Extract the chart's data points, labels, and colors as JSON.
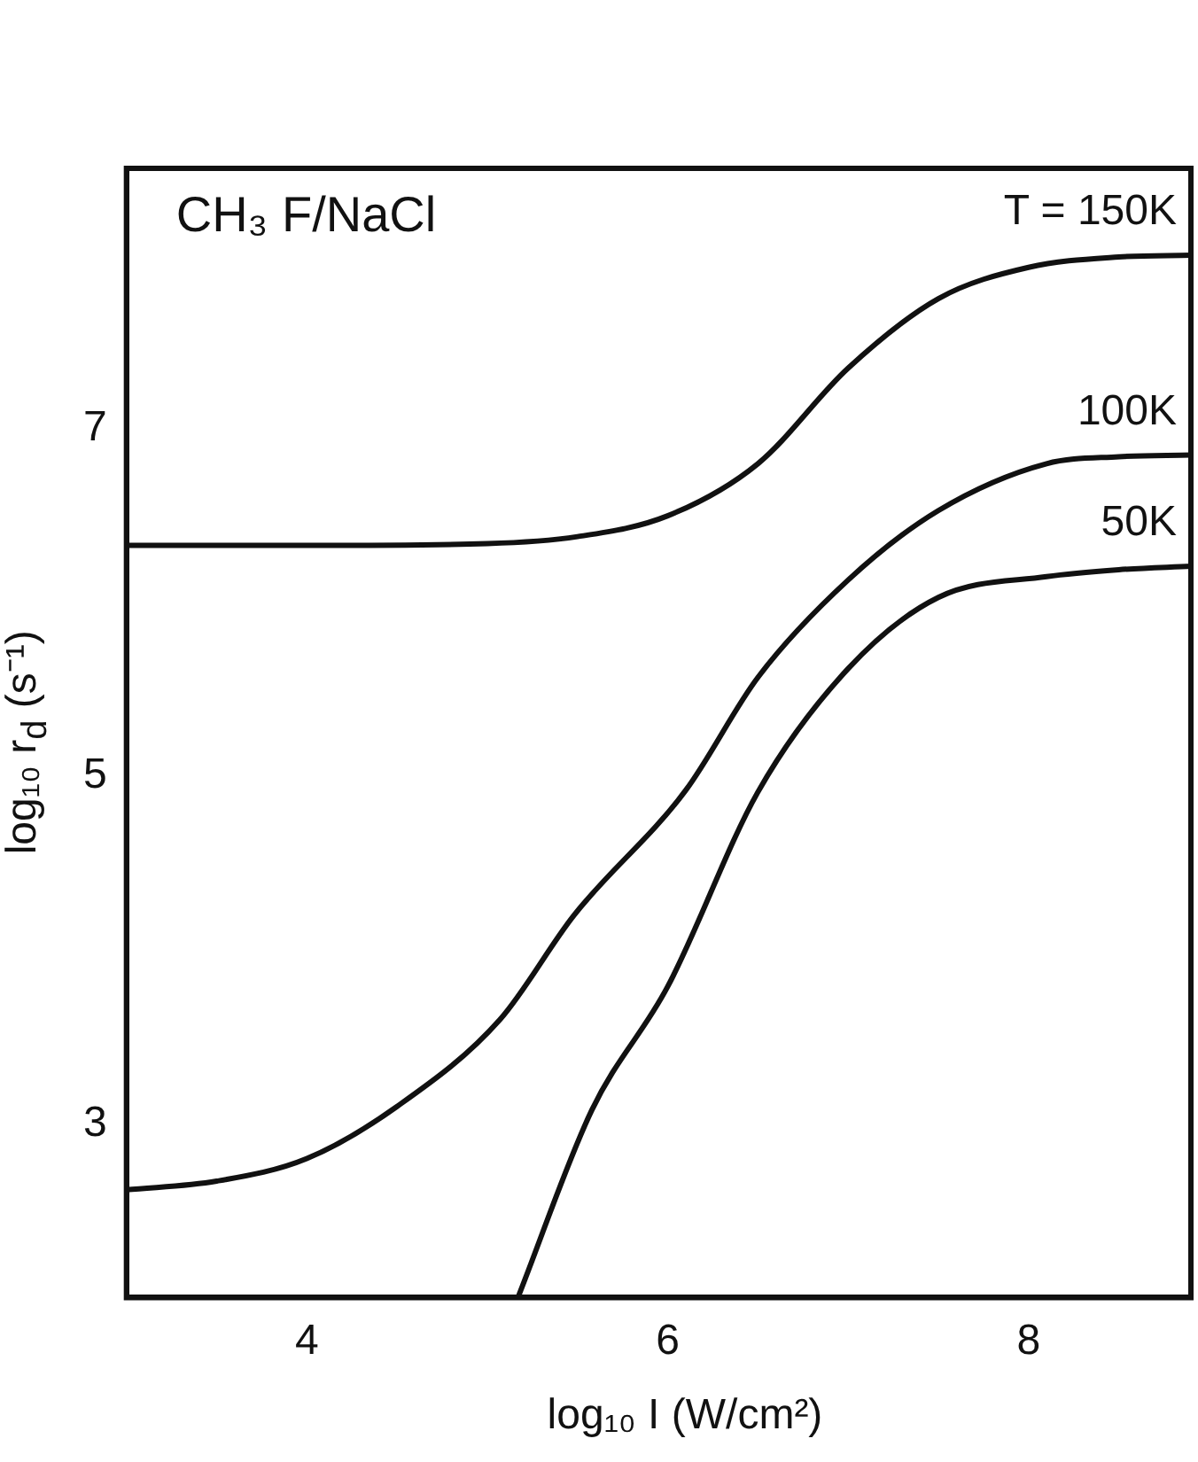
{
  "chart_data": {
    "type": "line",
    "title": "CH₃ F/NaCl",
    "xlabel": "log₁₀ I (W/cm²)",
    "ylabel": "log₁₀ r$_{d}$ (s⁻¹)",
    "xlim": [
      3,
      8.9
    ],
    "ylim": [
      2,
      8.5
    ],
    "xticks": [
      4,
      6,
      8
    ],
    "yticks": [
      3,
      5,
      7
    ],
    "marker": "none",
    "line_style": "solid",
    "legend": false,
    "series": [
      {
        "color": "#111111",
        "x": [
          3,
          4,
          5,
          5.5,
          6,
          6.5,
          7,
          7.5,
          8,
          8.5,
          8.9
        ],
        "values": [
          6.33,
          6.33,
          6.34,
          6.38,
          6.5,
          6.8,
          7.35,
          7.75,
          7.93,
          7.99,
          8.0
        ]
      },
      {
        "color": "#111111",
        "x": [
          3,
          3.5,
          4,
          4.5,
          5.07,
          5.48,
          6.1,
          6.5,
          7,
          7.5,
          8.1,
          8.5,
          8.9
        ],
        "values": [
          2.62,
          2.67,
          2.8,
          3.1,
          3.6,
          4.2,
          4.92,
          5.57,
          6.13,
          6.53,
          6.8,
          6.84,
          6.85
        ]
      },
      {
        "color": "#111111",
        "x": [
          5.17,
          5.58,
          6,
          6.5,
          7,
          7.5,
          8.1,
          8.5,
          8.9
        ],
        "values": [
          2.0,
          3.08,
          3.79,
          4.91,
          5.62,
          6.03,
          6.15,
          6.19,
          6.21
        ]
      }
    ],
    "annotations": [
      "T = 150K",
      "100K",
      "50K"
    ]
  }
}
